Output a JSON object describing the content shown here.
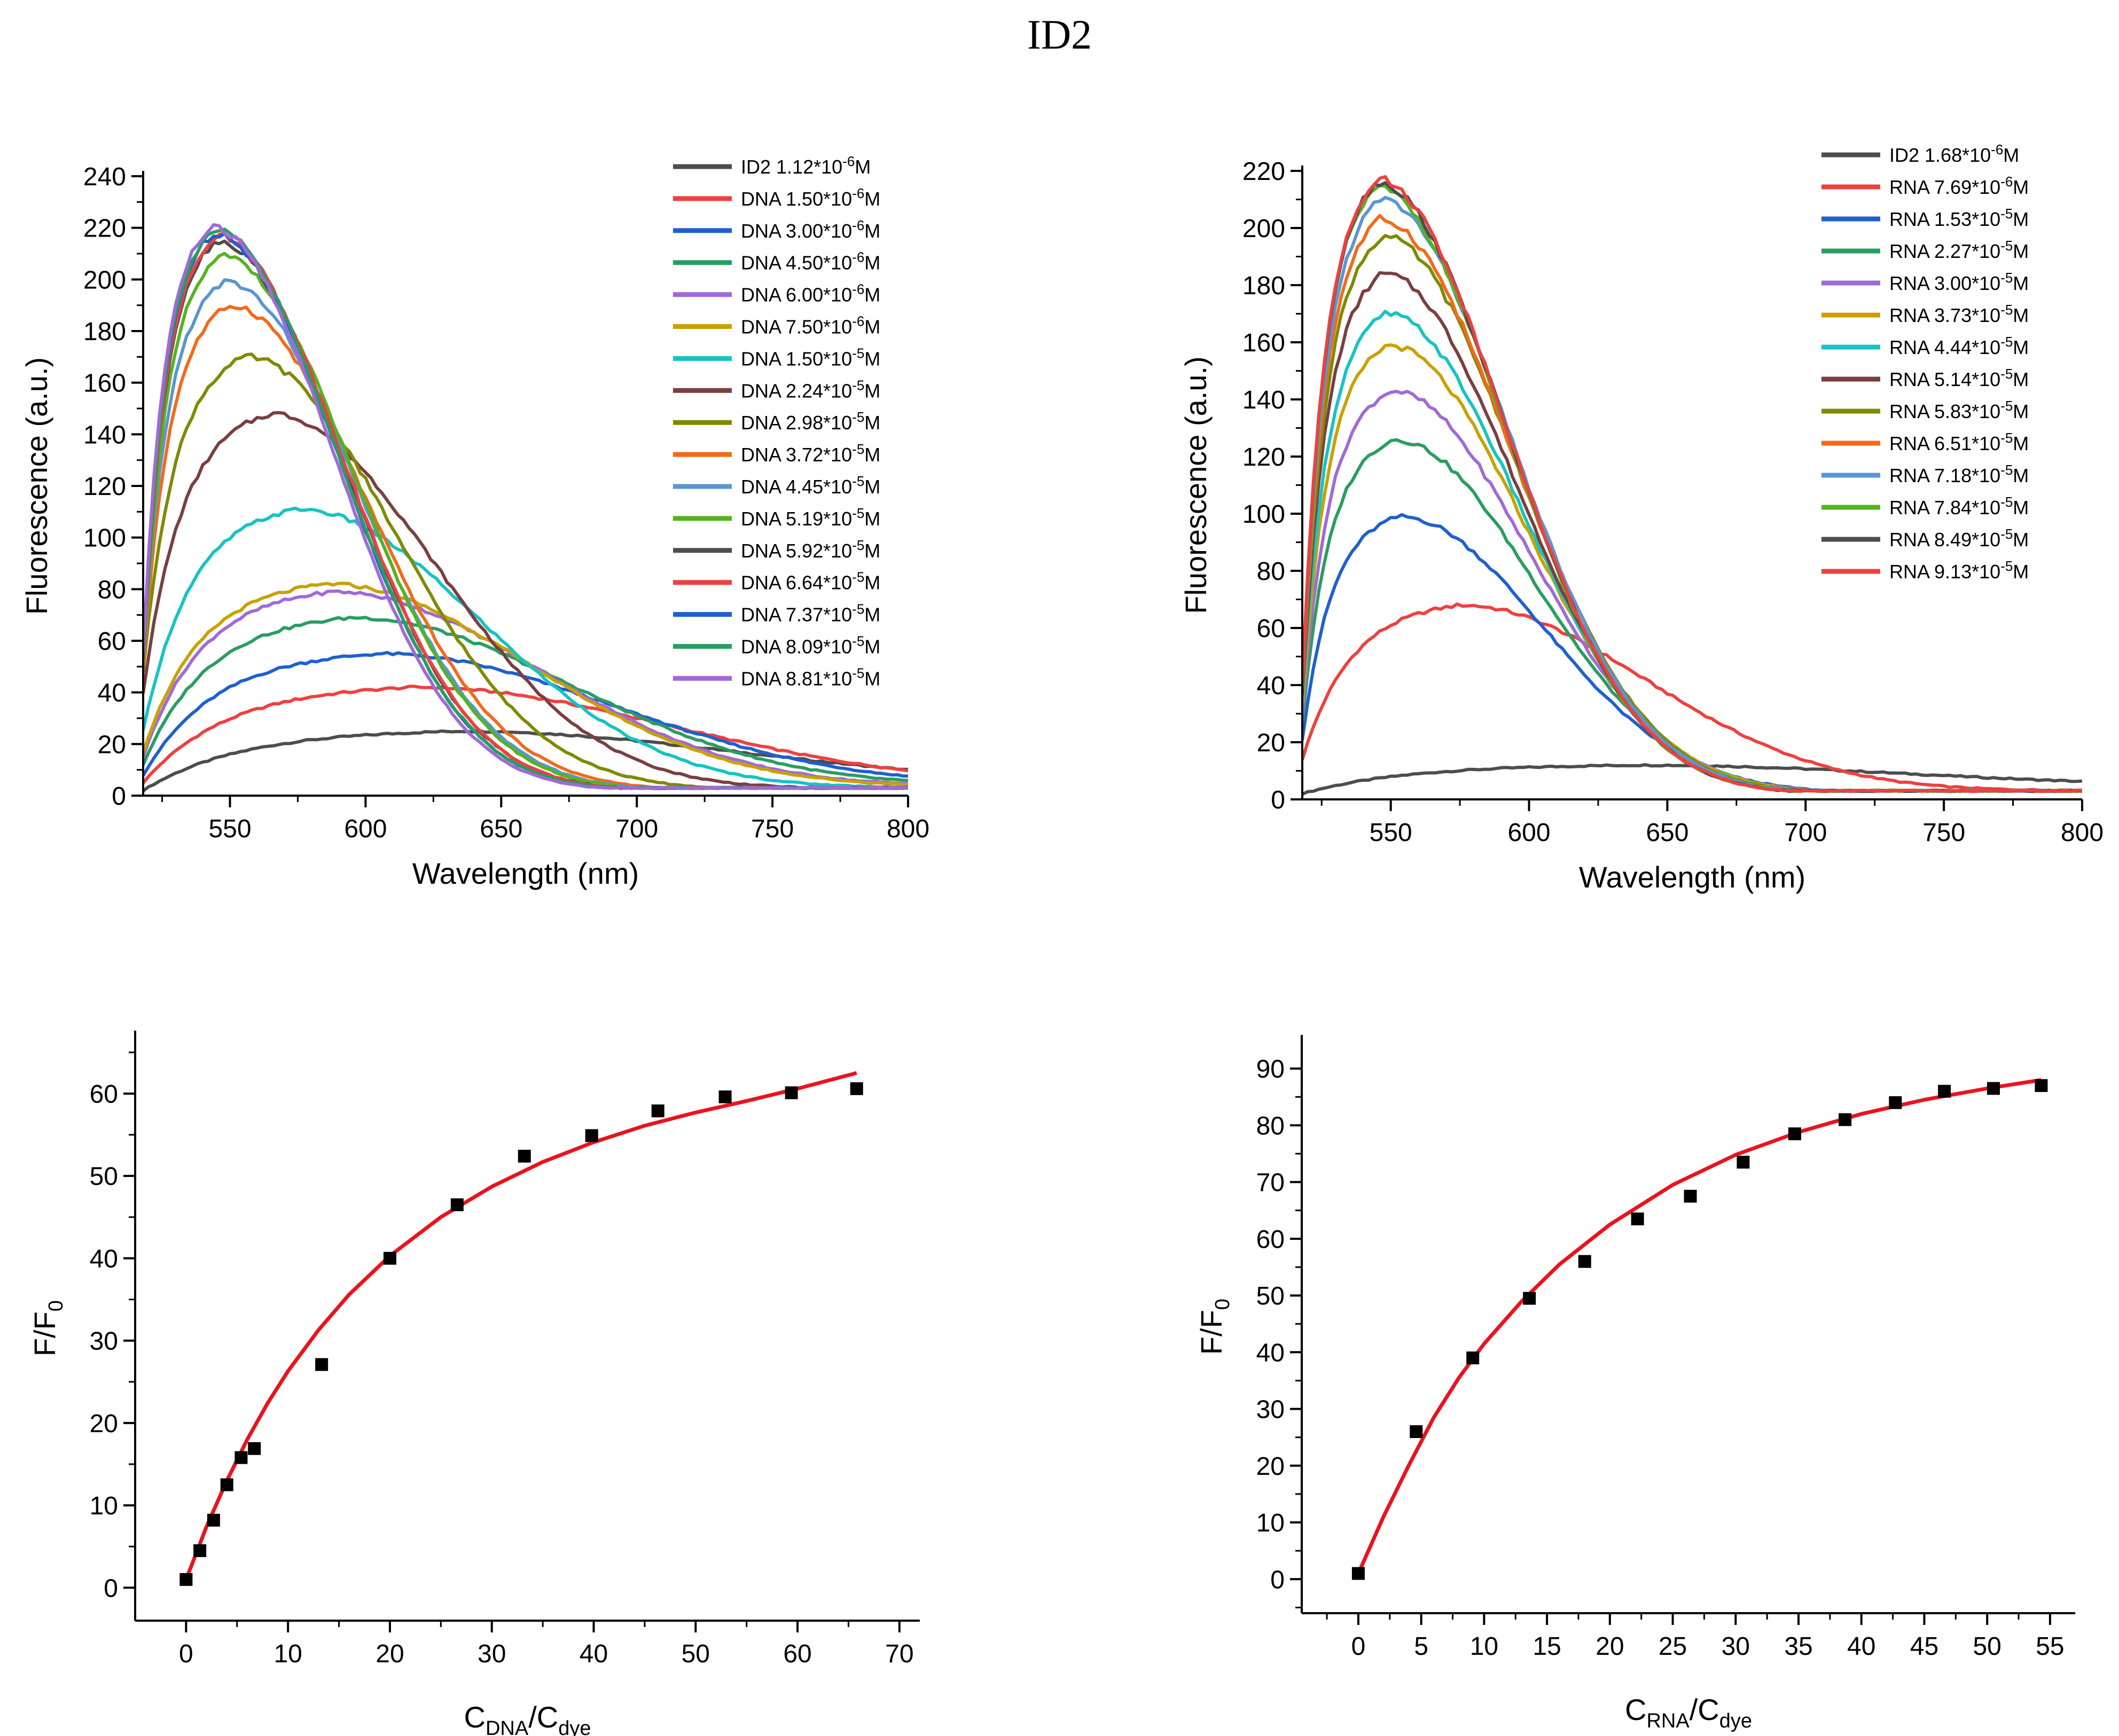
{
  "title": "ID2",
  "chart_data": [
    {
      "type": "line",
      "xlabel": "Wavelength (nm)",
      "ylabel": "Fluorescence (a.u.)",
      "xlim": [
        518,
        800
      ],
      "ylim": [
        0,
        240
      ],
      "xticks": [
        550,
        600,
        650,
        700,
        750,
        800
      ],
      "yticks": [
        0,
        20,
        40,
        60,
        80,
        100,
        120,
        140,
        160,
        180,
        200,
        220,
        240
      ],
      "legend_position": "top-right",
      "series": [
        {
          "name": "ID2  1.12*10-6M",
          "label": {
            "pre": "ID2  1.12*10",
            "exp": "-6",
            "post": "M"
          },
          "color": "#4d4d4d",
          "peak_x": 635,
          "peak_y": 25,
          "start_y": 2
        },
        {
          "name": "DNA 1.50*10-6M",
          "label": {
            "pre": "DNA 1.50*10",
            "exp": "-6",
            "post": "M"
          },
          "color": "#ef4040",
          "peak_x": 618,
          "peak_y": 42,
          "start_y": 5
        },
        {
          "name": "DNA 3.00*10-6M",
          "label": {
            "pre": "DNA 3.00*10",
            "exp": "-6",
            "post": "M"
          },
          "color": "#1f5fd1",
          "peak_x": 605,
          "peak_y": 55,
          "start_y": 8
        },
        {
          "name": "DNA 4.50*10-6M",
          "label": {
            "pre": "DNA 4.50*10",
            "exp": "-6",
            "post": "M"
          },
          "color": "#2a9d62",
          "peak_x": 595,
          "peak_y": 69,
          "start_y": 12
        },
        {
          "name": "DNA 6.00*10-6M",
          "label": {
            "pre": "DNA 6.00*10",
            "exp": "-6",
            "post": "M"
          },
          "color": "#a06ad8",
          "peak_x": 588,
          "peak_y": 79,
          "start_y": 15
        },
        {
          "name": "DNA 7.50*10-6M",
          "label": {
            "pre": "DNA 7.50*10",
            "exp": "-6",
            "post": "M"
          },
          "color": "#c9a100",
          "peak_x": 586,
          "peak_y": 82,
          "start_y": 17
        },
        {
          "name": "DNA 1.50*10-5M",
          "label": {
            "pre": "DNA 1.50*10",
            "exp": "-5",
            "post": "M"
          },
          "color": "#17c3c3",
          "peak_x": 575,
          "peak_y": 111,
          "start_y": 25
        },
        {
          "name": "DNA 2.24*10-5M",
          "label": {
            "pre": "DNA 2.24*10",
            "exp": "-5",
            "post": "M"
          },
          "color": "#7a3f3f",
          "peak_x": 565,
          "peak_y": 148,
          "start_y": 40
        },
        {
          "name": "DNA 2.98*10-5M",
          "label": {
            "pre": "DNA 2.98*10",
            "exp": "-5",
            "post": "M"
          },
          "color": "#7f8a00",
          "peak_x": 556,
          "peak_y": 170,
          "start_y": 48
        },
        {
          "name": "DNA 3.72*10-5M",
          "label": {
            "pre": "DNA 3.72*10",
            "exp": "-5",
            "post": "M"
          },
          "color": "#f26a1b",
          "peak_x": 550,
          "peak_y": 190,
          "start_y": 50
        },
        {
          "name": "DNA 4.45*10-5M",
          "label": {
            "pre": "DNA 4.45*10",
            "exp": "-5",
            "post": "M"
          },
          "color": "#5a96d2",
          "peak_x": 548,
          "peak_y": 199,
          "start_y": 52
        },
        {
          "name": "DNA 5.19*10-5M",
          "label": {
            "pre": "DNA 5.19*10",
            "exp": "-5",
            "post": "M"
          },
          "color": "#55b320",
          "peak_x": 547,
          "peak_y": 209,
          "start_y": 52
        },
        {
          "name": "DNA 5.92*10-5M",
          "label": {
            "pre": "DNA 5.92*10",
            "exp": "-5",
            "post": "M"
          },
          "color": "#4d4d4d",
          "peak_x": 545,
          "peak_y": 215,
          "start_y": 53
        },
        {
          "name": "DNA 6.64*10-5M",
          "label": {
            "pre": "DNA 6.64*10",
            "exp": "-5",
            "post": "M"
          },
          "color": "#ef4040",
          "peak_x": 545,
          "peak_y": 217,
          "start_y": 53
        },
        {
          "name": "DNA 7.37*10-5M",
          "label": {
            "pre": "DNA 7.37*10",
            "exp": "-5",
            "post": "M"
          },
          "color": "#1f5fd1",
          "peak_x": 544,
          "peak_y": 218,
          "start_y": 54
        },
        {
          "name": "DNA 8.09*10-5M",
          "label": {
            "pre": "DNA 8.09*10",
            "exp": "-5",
            "post": "M"
          },
          "color": "#2a9d62",
          "peak_x": 544,
          "peak_y": 219,
          "start_y": 54
        },
        {
          "name": "DNA 8.81*10-5M",
          "label": {
            "pre": "DNA 8.81*10",
            "exp": "-5",
            "post": "M"
          },
          "color": "#a06ad8",
          "peak_x": 543,
          "peak_y": 220,
          "start_y": 55
        }
      ]
    },
    {
      "type": "line",
      "xlabel": "Wavelength (nm)",
      "ylabel": "Fluorescence (a.u.)",
      "xlim": [
        518,
        800
      ],
      "ylim": [
        0,
        220
      ],
      "xticks": [
        550,
        600,
        650,
        700,
        750,
        800
      ],
      "yticks": [
        0,
        20,
        40,
        60,
        80,
        100,
        120,
        140,
        160,
        180,
        200,
        220
      ],
      "legend_position": "top-right",
      "series": [
        {
          "name": "ID2   1.68*10-6M",
          "label": {
            "pre": "ID2   1.68*10",
            "exp": "-6",
            "post": "M"
          },
          "color": "#4d4d4d",
          "peak_x": 640,
          "peak_y": 12,
          "start_y": 2
        },
        {
          "name": "RNA 7.69*10-6M",
          "label": {
            "pre": "RNA 7.69*10",
            "exp": "-6",
            "post": "M"
          },
          "color": "#ef4040",
          "peak_x": 575,
          "peak_y": 68,
          "start_y": 14
        },
        {
          "name": "RNA 1.53*10-5M",
          "label": {
            "pre": "RNA 1.53*10",
            "exp": "-5",
            "post": "M"
          },
          "color": "#1f5fd1",
          "peak_x": 553,
          "peak_y": 99,
          "start_y": 21
        },
        {
          "name": "RNA 2.27*10-5M",
          "label": {
            "pre": "RNA 2.27*10",
            "exp": "-5",
            "post": "M"
          },
          "color": "#2a9d62",
          "peak_x": 551,
          "peak_y": 126,
          "start_y": 27
        },
        {
          "name": "RNA 3.00*10-5M",
          "label": {
            "pre": "RNA 3.00*10",
            "exp": "-5",
            "post": "M"
          },
          "color": "#a06ad8",
          "peak_x": 550,
          "peak_y": 143,
          "start_y": 30
        },
        {
          "name": "RNA 3.73*10-5M",
          "label": {
            "pre": "RNA 3.73*10",
            "exp": "-5",
            "post": "M"
          },
          "color": "#c9a100",
          "peak_x": 549,
          "peak_y": 159,
          "start_y": 33
        },
        {
          "name": "RNA 4.44*10-5M",
          "label": {
            "pre": "RNA 4.44*10",
            "exp": "-5",
            "post": "M"
          },
          "color": "#17c3c3",
          "peak_x": 548,
          "peak_y": 170,
          "start_y": 35
        },
        {
          "name": "RNA 5.14*10-5M",
          "label": {
            "pre": "RNA 5.14*10",
            "exp": "-5",
            "post": "M"
          },
          "color": "#7a3f3f",
          "peak_x": 547,
          "peak_y": 184,
          "start_y": 37
        },
        {
          "name": "RNA 5.83*10-5M",
          "label": {
            "pre": "RNA 5.83*10",
            "exp": "-5",
            "post": "M"
          },
          "color": "#7f8a00",
          "peak_x": 547,
          "peak_y": 197,
          "start_y": 39
        },
        {
          "name": "RNA 6.51*10-5M",
          "label": {
            "pre": "RNA 6.51*10",
            "exp": "-5",
            "post": "M"
          },
          "color": "#f26a1b",
          "peak_x": 546,
          "peak_y": 203,
          "start_y": 40
        },
        {
          "name": "RNA 7.18*10-5M",
          "label": {
            "pre": "RNA 7.18*10",
            "exp": "-5",
            "post": "M"
          },
          "color": "#5a96d2",
          "peak_x": 546,
          "peak_y": 210,
          "start_y": 40
        },
        {
          "name": "RNA 7.84*10-5M",
          "label": {
            "pre": "RNA 7.84*10",
            "exp": "-5",
            "post": "M"
          },
          "color": "#55b320",
          "peak_x": 545,
          "peak_y": 214,
          "start_y": 41
        },
        {
          "name": "RNA 8.49*10-5M",
          "label": {
            "pre": "RNA 8.49*10",
            "exp": "-5",
            "post": "M"
          },
          "color": "#4d4d4d",
          "peak_x": 545,
          "peak_y": 216,
          "start_y": 41
        },
        {
          "name": "RNA 9.13*10-5M",
          "label": {
            "pre": "RNA 9.13*10",
            "exp": "-5",
            "post": "M"
          },
          "color": "#ef4040",
          "peak_x": 545,
          "peak_y": 217,
          "start_y": 41
        }
      ]
    },
    {
      "type": "scatter",
      "xlabel": {
        "main": "C",
        "sub1": "DNA",
        "mid": "/C",
        "sub2": "dye"
      },
      "ylabel": {
        "main": "F/F",
        "sub": "0"
      },
      "xlim": [
        -5,
        72
      ],
      "ylim": [
        -4,
        67
      ],
      "xticks": [
        0,
        10,
        20,
        30,
        40,
        50,
        60,
        70
      ],
      "yticks": [
        0,
        10,
        20,
        30,
        40,
        50,
        60
      ],
      "points": {
        "x": [
          0,
          1.35,
          2.7,
          4.0,
          5.4,
          6.7,
          13.3,
          20.0,
          26.6,
          33.2,
          39.8,
          46.3,
          52.9,
          59.4,
          65.8
        ],
        "y": [
          1,
          4.5,
          8.2,
          12.5,
          15.8,
          16.9,
          27.1,
          40.0,
          46.5,
          52.4,
          54.9,
          57.9,
          59.6,
          60.1,
          60.6
        ]
      },
      "fit": {
        "color": "#e8141e",
        "x": [
          0,
          2,
          4,
          6,
          8,
          10,
          13,
          16,
          20,
          25,
          30,
          35,
          40,
          45,
          50,
          55,
          60,
          65.8
        ],
        "y": [
          1,
          7.4,
          13.0,
          18.0,
          22.4,
          26.3,
          31.3,
          35.6,
          40.3,
          45.0,
          48.7,
          51.7,
          54.1,
          56.1,
          57.7,
          59.1,
          60.6,
          62.5
        ]
      }
    },
    {
      "type": "scatter",
      "xlabel": {
        "main": "C",
        "sub1": "RNA",
        "mid": "/C",
        "sub2": "dye"
      },
      "ylabel": {
        "main": "F/F",
        "sub": "0"
      },
      "xlim": [
        -4.5,
        57
      ],
      "ylim": [
        -6,
        95
      ],
      "xticks": [
        0,
        5,
        10,
        15,
        20,
        25,
        30,
        35,
        40,
        45,
        50,
        55
      ],
      "yticks": [
        0,
        10,
        20,
        30,
        40,
        50,
        60,
        70,
        80,
        90
      ],
      "points": {
        "x": [
          0,
          4.6,
          9.1,
          13.6,
          18.0,
          22.2,
          26.4,
          30.6,
          34.7,
          38.7,
          42.7,
          46.6,
          50.5,
          54.3
        ],
        "y": [
          1,
          26,
          39,
          49.5,
          56,
          63.5,
          67.5,
          73.5,
          78.5,
          81,
          84,
          86,
          86.5,
          87
        ]
      },
      "fit": {
        "color": "#e8141e",
        "x": [
          0,
          2,
          4,
          6,
          8,
          10,
          13,
          16,
          20,
          25,
          30,
          35,
          40,
          45,
          50,
          54.3
        ],
        "y": [
          1,
          11,
          20,
          28.5,
          35.5,
          41.5,
          49,
          55.5,
          62.5,
          69.5,
          74.8,
          78.8,
          82,
          84.5,
          86.5,
          88
        ]
      }
    }
  ]
}
